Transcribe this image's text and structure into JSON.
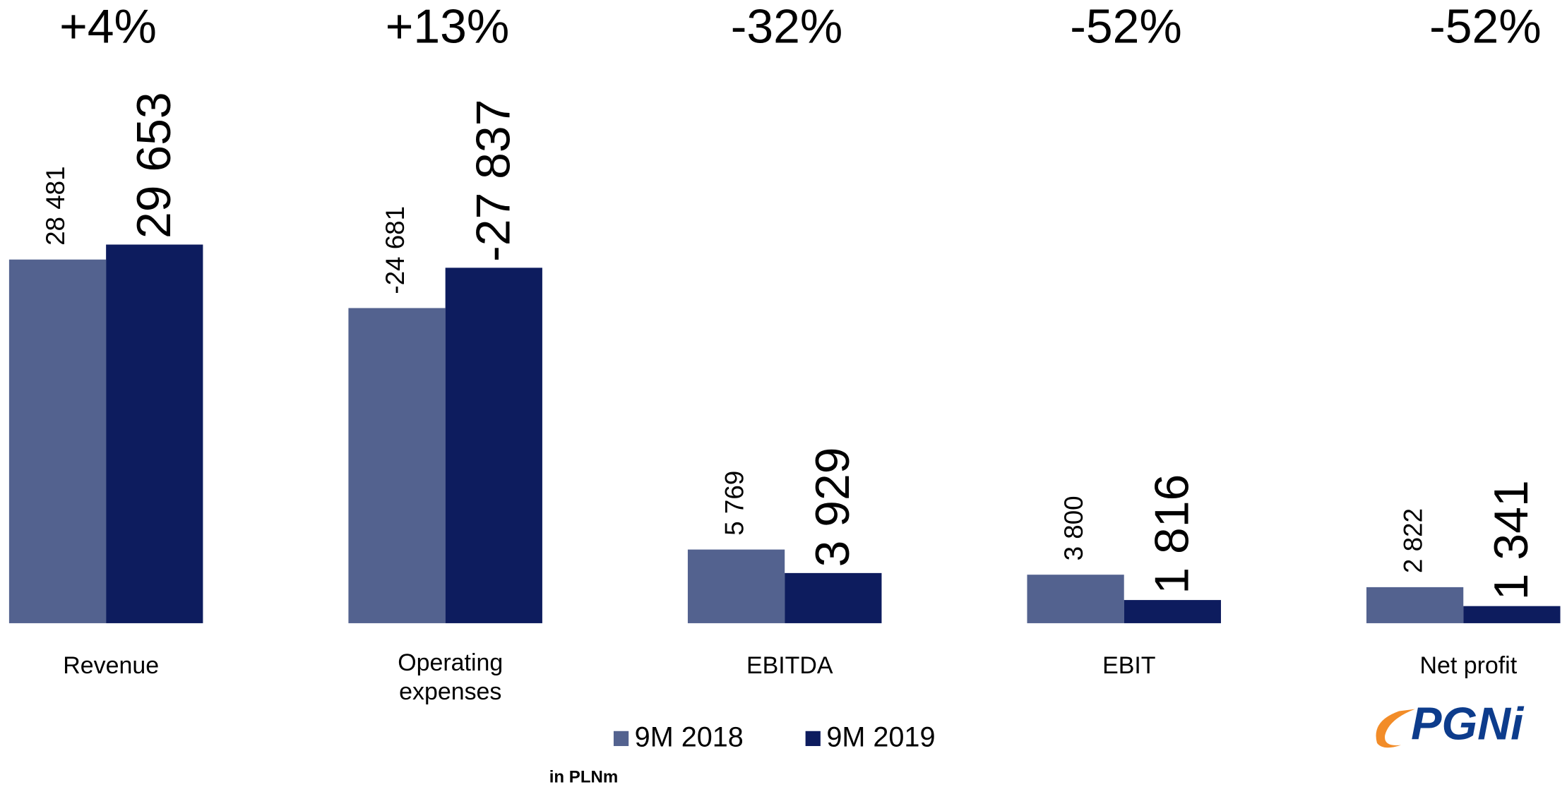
{
  "chart_data": {
    "type": "bar",
    "categories": [
      "Revenue",
      "Operating expenses",
      "EBITDA",
      "EBIT",
      "Net profit"
    ],
    "changes": [
      "+4%",
      "+13%",
      "-32%",
      "-52%",
      "-52%"
    ],
    "series": [
      {
        "name": "9M 2018",
        "color": "#53628f",
        "values": [
          28481,
          -24681,
          5769,
          3800,
          2822
        ],
        "value_labels": [
          "28 481",
          "-24 681",
          "5 769",
          "3 800",
          "2 822"
        ]
      },
      {
        "name": "9M 2019",
        "color": "#0d1c5e",
        "values": [
          29653,
          -27837,
          3929,
          1816,
          1341
        ],
        "value_labels": [
          "29 653",
          "-27 837",
          "3 929",
          "1 816",
          "1 341"
        ]
      }
    ],
    "note": "in PLNm",
    "logo": "PGNi"
  }
}
